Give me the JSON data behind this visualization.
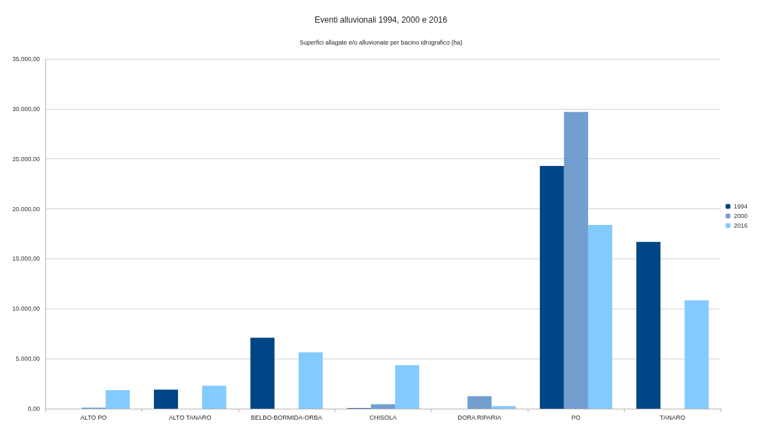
{
  "chart_data": {
    "type": "bar",
    "title": "Eventi alluvionali 1994, 2000 e 2016",
    "subtitle": "Superfici allagate e/o alluvionate per bacino idrografico (ha)",
    "categories": [
      "ALTO PO",
      "ALTO TANARO",
      "BELBO-BORMIDA-ORBA",
      "CHISOLA",
      "DORA RIPARIA",
      "PO",
      "TANARO"
    ],
    "series": [
      {
        "name": "1994",
        "color": "#004586",
        "values": [
          null,
          1900,
          7100,
          50,
          null,
          24300,
          16700
        ]
      },
      {
        "name": "2000",
        "color": "#729fcf",
        "values": [
          100,
          null,
          null,
          450,
          1250,
          29700,
          null
        ]
      },
      {
        "name": "2016",
        "color": "#83caff",
        "values": [
          1850,
          2300,
          5650,
          4350,
          260,
          18400,
          10850
        ]
      }
    ],
    "ylim": [
      0,
      35000
    ],
    "yticks": [
      {
        "value": 0,
        "label": "0,00"
      },
      {
        "value": 5000,
        "label": "5.000,00"
      },
      {
        "value": 10000,
        "label": "10.000,00"
      },
      {
        "value": 15000,
        "label": "15.000,00"
      },
      {
        "value": 20000,
        "label": "20.000,00"
      },
      {
        "value": 25000,
        "label": "25.000,00"
      },
      {
        "value": 30000,
        "label": "30.000,00"
      },
      {
        "value": 35000,
        "label": "35.000,00"
      }
    ],
    "grid": "y",
    "legend": "right"
  }
}
